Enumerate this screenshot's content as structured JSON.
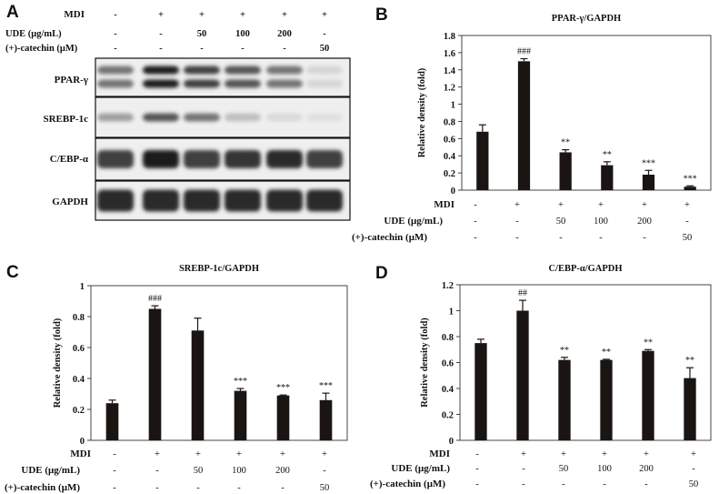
{
  "chart_data": [
    {
      "panel": "A",
      "type": "western-blot",
      "conditions": {
        "labels": [
          "MDI",
          "UDE (μg/mL)",
          "(+)-catechin (μM)"
        ],
        "columns": [
          [
            "-",
            "-",
            "-"
          ],
          [
            "+",
            "-",
            "-"
          ],
          [
            "+",
            "50",
            "-"
          ],
          [
            "+",
            "100",
            "-"
          ],
          [
            "+",
            "200",
            "-"
          ],
          [
            "+",
            "-",
            "50"
          ]
        ]
      },
      "proteins": [
        "PPAR-γ",
        "SREBP-1c",
        "C/EBP-α",
        "GAPDH"
      ],
      "band_intensity": [
        [
          0.55,
          0.95,
          0.8,
          0.7,
          0.55,
          0.1
        ],
        [
          0.35,
          0.7,
          0.55,
          0.2,
          0.08,
          0.05
        ],
        [
          0.8,
          0.95,
          0.8,
          0.85,
          0.9,
          0.8
        ],
        [
          0.9,
          0.9,
          0.9,
          0.9,
          0.9,
          0.9
        ]
      ]
    },
    {
      "panel": "B",
      "type": "bar",
      "title": "PPAR-γ/GAPDH",
      "ylabel": "Relative density (fold)",
      "ylim": [
        0,
        1.8
      ],
      "yticks": [
        "0",
        "0.2",
        "0.4",
        "0.6",
        "0.8",
        "1",
        "1.2",
        "1.4",
        "1.6",
        "1.8"
      ],
      "values": [
        0.68,
        1.5,
        0.44,
        0.29,
        0.18,
        0.04
      ],
      "errors": [
        0.08,
        0.03,
        0.03,
        0.04,
        0.05,
        0.01
      ],
      "significance": [
        "",
        "###",
        "**",
        "**",
        "***",
        "***"
      ],
      "conditions": {
        "labels": [
          "MDI",
          "UDE (μg/mL)",
          "(+)-catechin (μM)"
        ],
        "columns": [
          [
            "-",
            "-",
            "-"
          ],
          [
            "+",
            "-",
            "-"
          ],
          [
            "+",
            "50",
            "-"
          ],
          [
            "+",
            "100",
            "-"
          ],
          [
            "+",
            "200",
            "-"
          ],
          [
            "+",
            "-",
            "50"
          ]
        ]
      }
    },
    {
      "panel": "C",
      "type": "bar",
      "title": "SREBP-1c/GAPDH",
      "ylabel": "Relative density (fold)",
      "ylim": [
        0,
        1
      ],
      "yticks": [
        "0",
        "0.2",
        "0.4",
        "0.6",
        "0.8",
        "1"
      ],
      "values": [
        0.24,
        0.85,
        0.71,
        0.32,
        0.29,
        0.26
      ],
      "errors": [
        0.02,
        0.02,
        0.08,
        0.015,
        0.003,
        0.045
      ],
      "significance": [
        "",
        "###",
        "",
        "***",
        "***",
        "***"
      ],
      "conditions": {
        "labels": [
          "MDI",
          "UDE (μg/mL)",
          "(+)-catechin (μM)"
        ],
        "columns": [
          [
            "-",
            "-",
            "-"
          ],
          [
            "+",
            "-",
            "-"
          ],
          [
            "+",
            "50",
            "-"
          ],
          [
            "+",
            "100",
            "-"
          ],
          [
            "+",
            "200",
            "-"
          ],
          [
            "+",
            "-",
            "50"
          ]
        ]
      }
    },
    {
      "panel": "D",
      "type": "bar",
      "title": "C/EBP-α/GAPDH",
      "ylabel": "Relative density (fold)",
      "ylim": [
        0,
        1.2
      ],
      "yticks": [
        "0",
        "0.2",
        "0.4",
        "0.6",
        "0.8",
        "1",
        "1.2"
      ],
      "values": [
        0.75,
        1.0,
        0.62,
        0.62,
        0.69,
        0.48
      ],
      "errors": [
        0.03,
        0.08,
        0.02,
        0.005,
        0.01,
        0.08
      ],
      "significance": [
        "",
        "##",
        "**",
        "**",
        "**",
        "**"
      ],
      "conditions": {
        "labels": [
          "MDI",
          "UDE (μg/mL)",
          "(+)-catechin (μM)"
        ],
        "columns": [
          [
            "-",
            "-",
            "-"
          ],
          [
            "+",
            "-",
            "-"
          ],
          [
            "+",
            "50",
            "-"
          ],
          [
            "+",
            "100",
            "-"
          ],
          [
            "+",
            "200",
            "-"
          ],
          [
            "+",
            "-",
            "50"
          ]
        ]
      }
    }
  ]
}
